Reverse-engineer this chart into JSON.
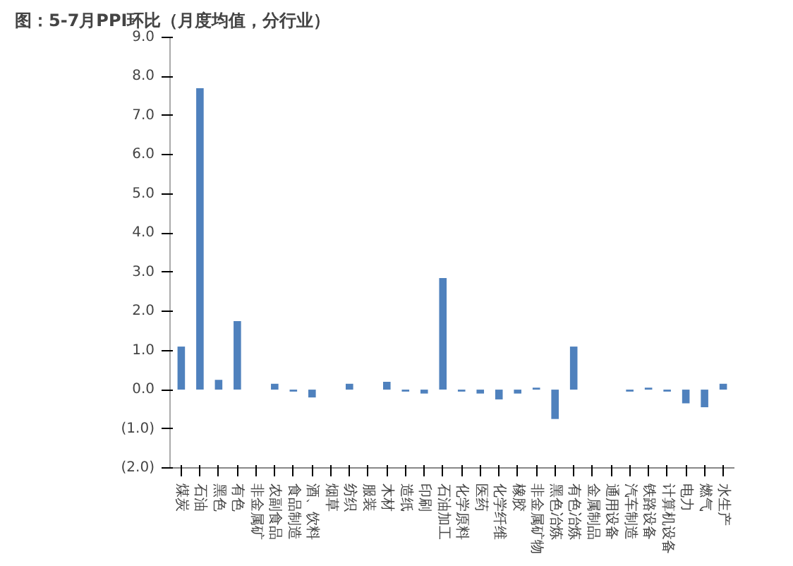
{
  "chart_data": {
    "type": "bar",
    "title": "图：5-7月PPI环比（月度均值，分行业）",
    "categories": [
      "煤炭",
      "石油",
      "黑色",
      "有色",
      "非金属矿",
      "农副食品",
      "食品制造",
      "酒、饮料",
      "烟草",
      "纺织",
      "服装",
      "木材",
      "造纸",
      "印刷",
      "石油加工",
      "化学原料",
      "医药",
      "化学纤维",
      "橡胶",
      "非金属矿物",
      "黑色冶炼",
      "有色冶炼",
      "金属制品",
      "通用设备",
      "汽车制造",
      "铁路设备",
      "计算机设备",
      "电力",
      "燃气",
      "水生产"
    ],
    "values": [
      1.1,
      7.7,
      0.25,
      1.75,
      0,
      0.15,
      -0.05,
      -0.2,
      0,
      0.15,
      0,
      0.2,
      -0.05,
      -0.1,
      2.85,
      -0.05,
      -0.1,
      -0.25,
      -0.1,
      0.05,
      -0.75,
      1.1,
      0,
      0,
      -0.05,
      0.05,
      -0.05,
      -0.35,
      -0.45,
      0.15
    ],
    "color": "#4f81bd",
    "ylim": [
      -2,
      9
    ],
    "yticks": [
      {
        "value": -2,
        "label": "(2.0)"
      },
      {
        "value": -1,
        "label": "(1.0)"
      },
      {
        "value": 0,
        "label": "0.0"
      },
      {
        "value": 1,
        "label": "1.0"
      },
      {
        "value": 2,
        "label": "2.0"
      },
      {
        "value": 3,
        "label": "3.0"
      },
      {
        "value": 4,
        "label": "4.0"
      },
      {
        "value": 5,
        "label": "5.0"
      },
      {
        "value": 6,
        "label": "6.0"
      },
      {
        "value": 7,
        "label": "7.0"
      },
      {
        "value": 8,
        "label": "8.0"
      },
      {
        "value": 9,
        "label": "9.0"
      }
    ],
    "grid": false
  }
}
